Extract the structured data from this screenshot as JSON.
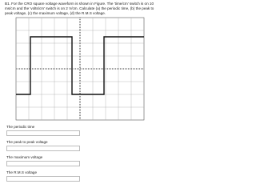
{
  "question": "B1. For the CRO square voltage waveform is shown in Figure. The 'time/cm' switch is on 10 ms/cm and the 'volts/cm' switch is on 2 V/cm. Calculate (a) the periodic time, (b) the peak to peak voltage, (c) the maximum voltage, (d) the R.M.S voltage.",
  "answers": [
    {
      "label": "The periodic time"
    },
    {
      "label": "The peak to peak voltage"
    },
    {
      "label": "The maximum voltage"
    },
    {
      "label": "The R.M.S voltage"
    }
  ]
}
